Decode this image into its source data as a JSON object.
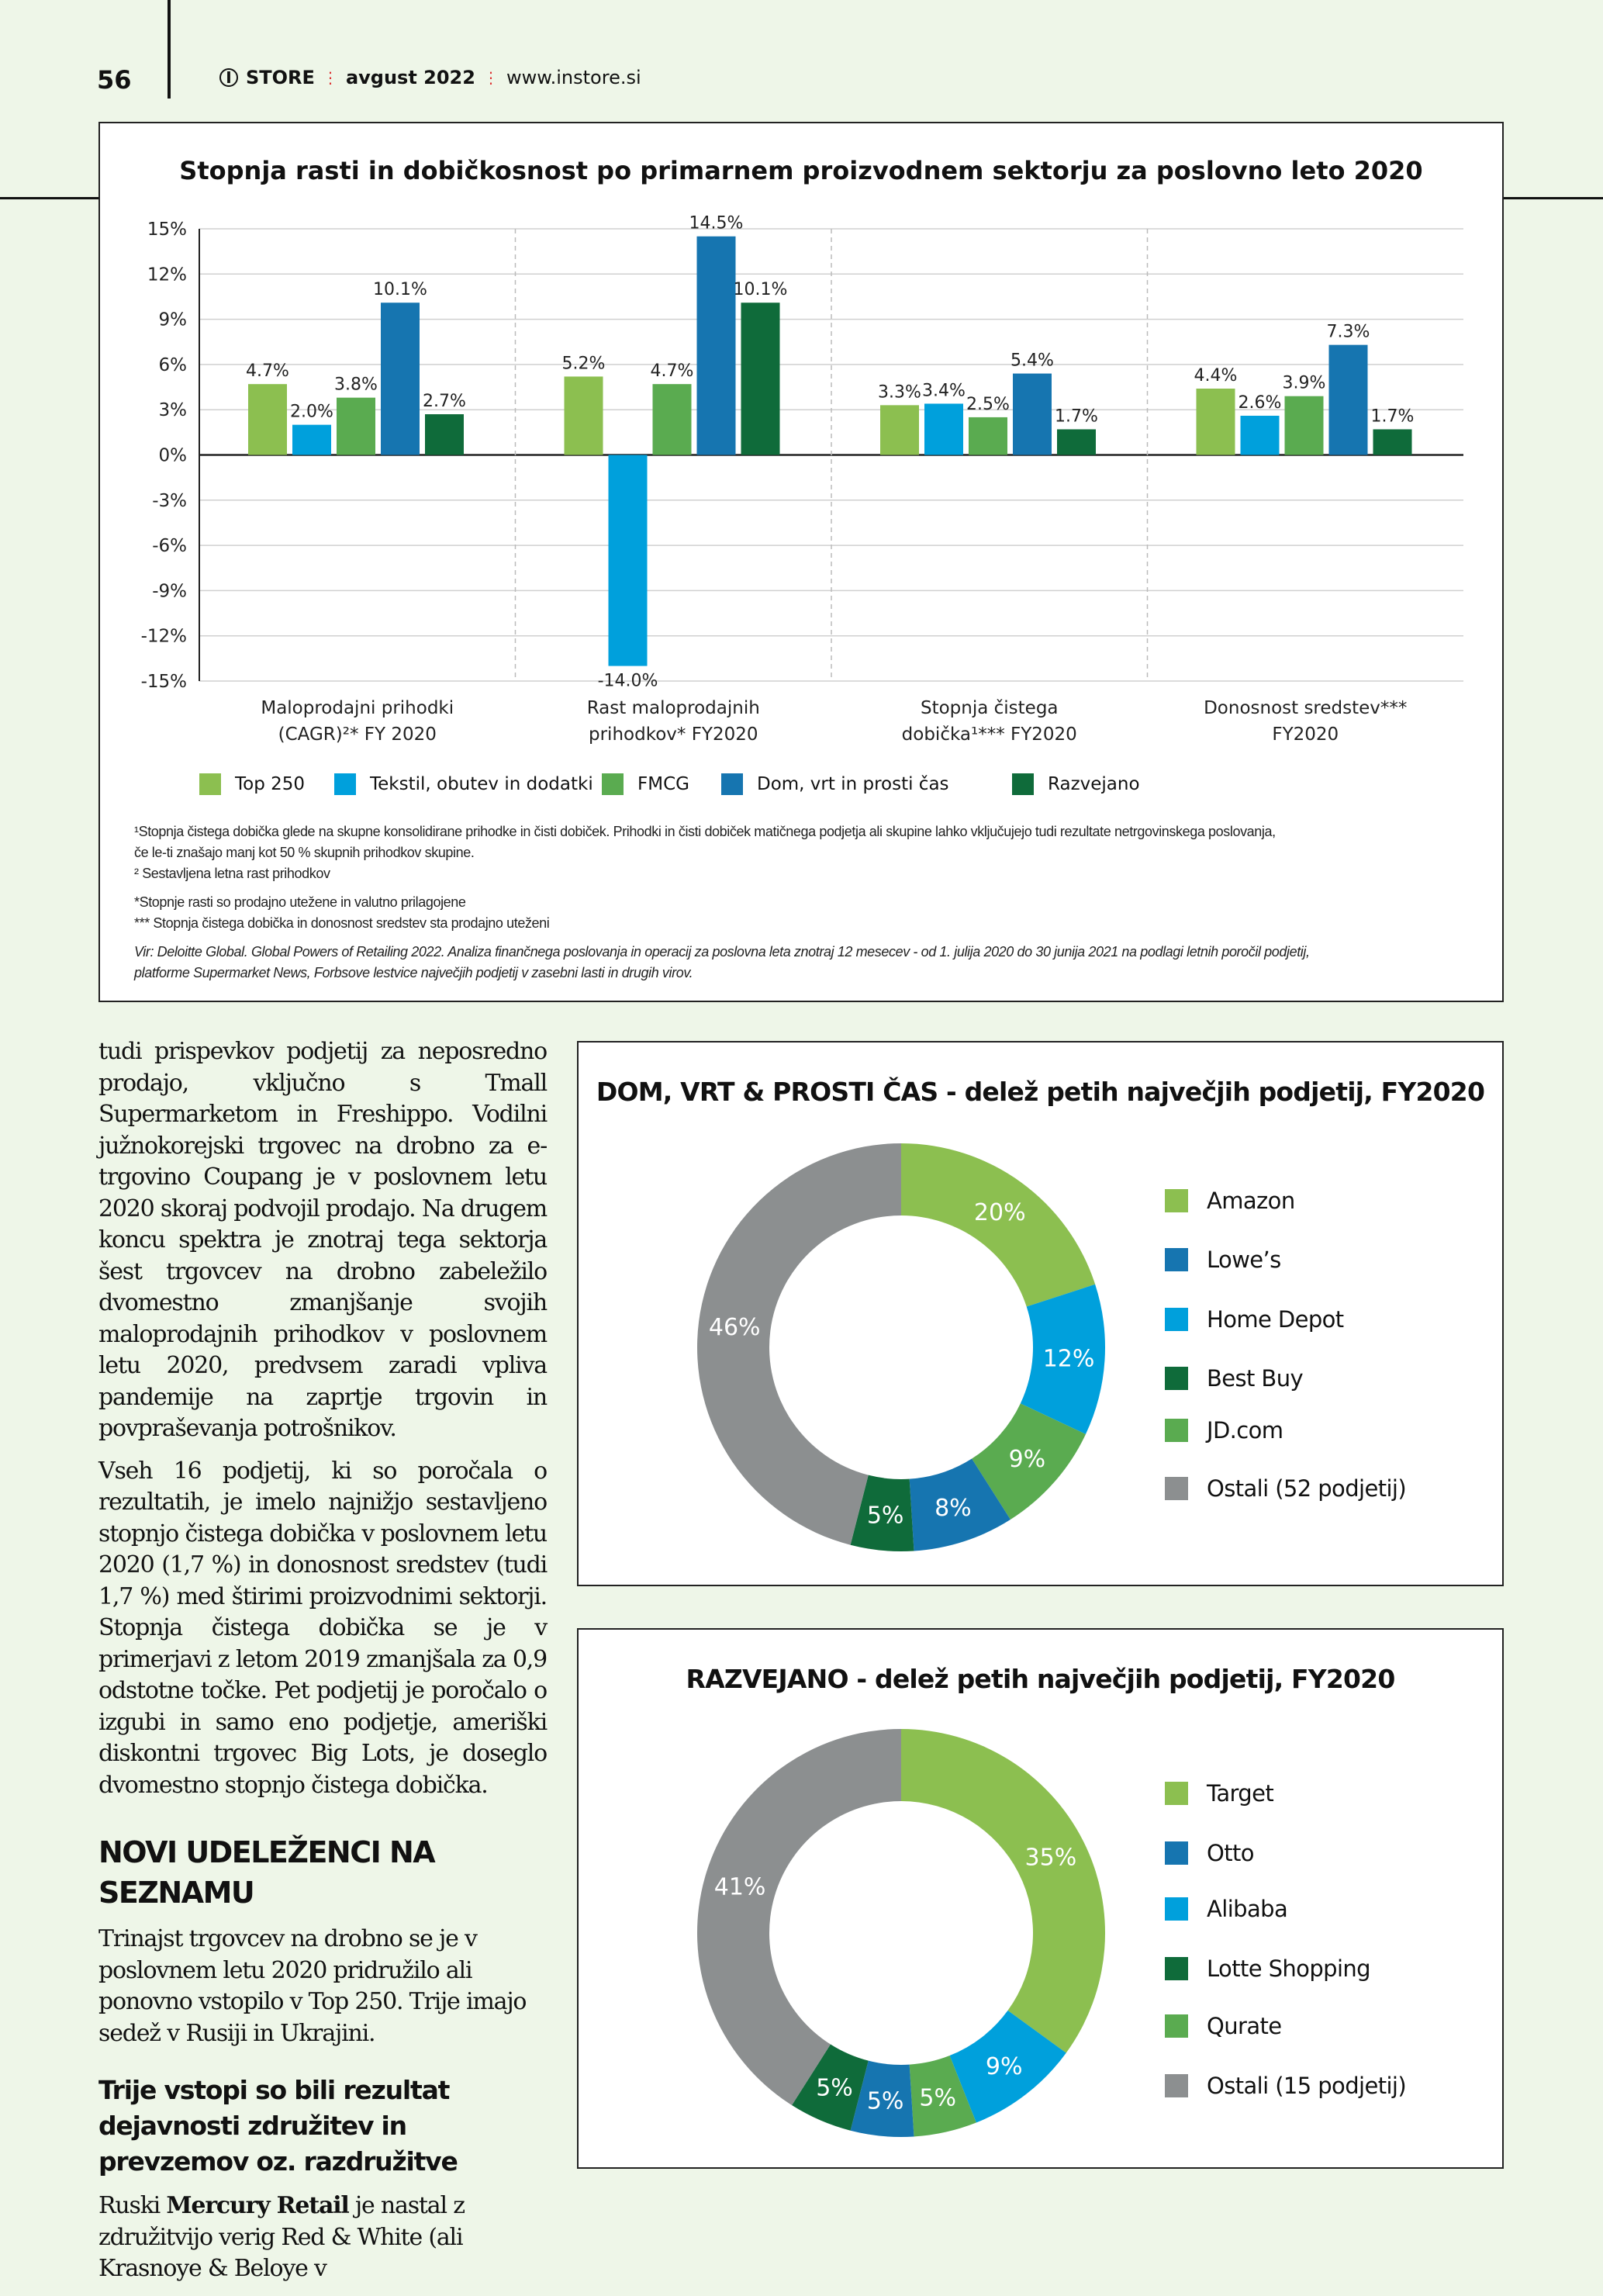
{
  "header": {
    "page_number": "56",
    "logo": "STORE",
    "issue": "avgust 2022",
    "website": "www.instore.si"
  },
  "colors": {
    "top250": "#8cbf50",
    "tekstil": "#00a0dc",
    "fmcg": "#5aab50",
    "dom": "#1675b0",
    "razvejano": "#0f6b3a",
    "ostali": "#8c8f90",
    "page_bg": "#eef6e8"
  },
  "chart_data": [
    {
      "type": "bar",
      "title": "Stopnja rasti in dobičkosnost po primarnem proizvodnem sektorju za poslovno leto 2020",
      "categories": [
        [
          "Maloprodajni prihodki",
          "(CAGR)²* FY 2020"
        ],
        [
          "Rast maloprodajnih",
          "prihodkov* FY2020"
        ],
        [
          "Stopnja čistega",
          "dobička¹*** FY2020"
        ],
        [
          "Donosnost sredstev***",
          "FY2020"
        ]
      ],
      "series": [
        {
          "name": "Top 250",
          "values": [
            4.7,
            5.2,
            3.3,
            4.4
          ]
        },
        {
          "name": "Tekstil, obutev in dodatki",
          "values": [
            2.0,
            -14.0,
            3.4,
            2.6
          ]
        },
        {
          "name": "FMCG",
          "values": [
            3.8,
            4.7,
            2.5,
            3.9
          ]
        },
        {
          "name": "Dom, vrt in prosti čas",
          "values": [
            10.1,
            14.5,
            5.4,
            7.3
          ]
        },
        {
          "name": "Razvejano",
          "values": [
            2.7,
            10.1,
            1.7,
            1.7
          ]
        }
      ],
      "ylim": [
        -15,
        15
      ],
      "yticks": [
        "15%",
        "12%",
        "9%",
        "6%",
        "3%",
        "0%",
        "-3%",
        "-6%",
        "-9%",
        "-12%",
        "-15%"
      ],
      "grid": true,
      "legend": "bottom",
      "notes": [
        "¹Stopnja čistega dobička glede na skupne konsolidirane prihodke in čisti dobiček. Prihodki in čisti dobiček matičnega podjetja ali skupine lahko vključujejo tudi rezultate netrgovinskega poslovanja,",
        "če le-ti znašajo manj kot 50 % skupnih prihodkov skupine.",
        "² Sestavljena letna rast prihodkov",
        "*Stopnje rasti so prodajno utežene in valutno prilagojene",
        "*** Stopnja čistega dobička in donosnost sredstev sta prodajno uteženi",
        "Vir: Deloitte Global. Global Powers of Retailing 2022. Analiza finančnega poslovanja in operacij za poslovna leta znotraj 12 mesecev - od 1. julija 2020 do 30 junija 2021 na podlagi letnih poročil podjetij,",
        "platforme Supermarket News, Forbsove lestvice največjih podjetij v zasebni lasti in drugih virov."
      ]
    },
    {
      "type": "pie",
      "title": "DOM, VRT & PROSTI ČAS - delež petih največjih podjetij, FY2020",
      "legend_order": [
        "Amazon",
        "Lowe’s",
        "Home Depot",
        "Best Buy",
        "JD.com",
        "Ostali (52 podjetij)"
      ],
      "slices": [
        {
          "name": "Amazon",
          "value": 20,
          "label": "20%",
          "color": "#8cbf50"
        },
        {
          "name": "Home Depot",
          "value": 12,
          "label": "12%",
          "color": "#00a0dc"
        },
        {
          "name": "JD.com",
          "value": 9,
          "label": "9%",
          "color": "#5aab50"
        },
        {
          "name": "Lowe’s",
          "value": 8,
          "label": "8%",
          "color": "#1675b0"
        },
        {
          "name": "Best Buy",
          "value": 5,
          "label": "5%",
          "color": "#0f6b3a"
        },
        {
          "name": "Ostali (52 podjetij)",
          "value": 46,
          "label": "46%",
          "color": "#8c8f90"
        }
      ],
      "legend": "right"
    },
    {
      "type": "pie",
      "title": "RAZVEJANO - delež petih največjih podjetij, FY2020",
      "legend_order": [
        "Target",
        "Otto",
        "Alibaba",
        "Lotte Shopping",
        "Qurate",
        "Ostali (15 podjetij)"
      ],
      "slices": [
        {
          "name": "Target",
          "value": 35,
          "label": "35%",
          "color": "#8cbf50"
        },
        {
          "name": "Alibaba",
          "value": 9,
          "label": "9%",
          "color": "#00a0dc"
        },
        {
          "name": "Qurate",
          "value": 5,
          "label": "5%",
          "color": "#5aab50"
        },
        {
          "name": "Otto",
          "value": 5,
          "label": "5%",
          "color": "#1675b0"
        },
        {
          "name": "Lotte Shopping",
          "value": 5,
          "label": "5%",
          "color": "#0f6b3a"
        },
        {
          "name": "Ostali (15 podjetij)",
          "value": 41,
          "label": "41%",
          "color": "#8c8f90"
        }
      ],
      "legend": "right"
    }
  ],
  "article": {
    "p1": "tudi prispevkov podjetij za neposredno prodajo, vključno s Tmall Supermarketom in Freshippo. Vodilni južnokorejski trgovec na drobno za e-trgovino Coupang je v poslovnem letu 2020 skoraj podvojil prodajo. Na drugem koncu spektra je znotraj tega sektorja šest trgovcev na drobno zabeležilo dvomestno zmanjšanje svojih maloprodajnih prihodkov v poslovnem letu 2020, predvsem zaradi vpliva pandemije na zaprtje trgovin in povpraševanja potrošnikov.",
    "p2": "Vseh 16 podjetij, ki so poročala o rezultatih, je imelo najnižjo sestavljeno stopnjo čistega dobička v poslovnem letu 2020 (1,7 %) in donosnost sredstev (tudi 1,7 %) med štirimi proizvodnimi sektorji. Stopnja čistega dobička se je v primerjavi z letom 2019 zmanjšala za 0,9 odstotne točke. Pet podjetij je poročalo o izgubi in samo eno podjetje, ameriški diskontni trgovec Big Lots, je doseglo dvomestno stopnjo čistega dobička.",
    "heading1": "NOVI UDELEŽENCI NA SEZNAMU",
    "p3": "Trinajst trgovcev na drobno se je v poslovnem letu 2020 pridružilo ali ponovno vstopilo v Top 250. Trije imajo sedež v Rusiji in Ukrajini.",
    "heading2": "Trije vstopi so bili rezultat dejavnosti združitev in prevzemov oz. razdružitve",
    "p4_prefix": "Ruski ",
    "p4_bold": "Mercury Retail",
    "p4_rest": " je nastal z združitvijo verig Red & White (ali Krasnoye & Beloye v"
  }
}
